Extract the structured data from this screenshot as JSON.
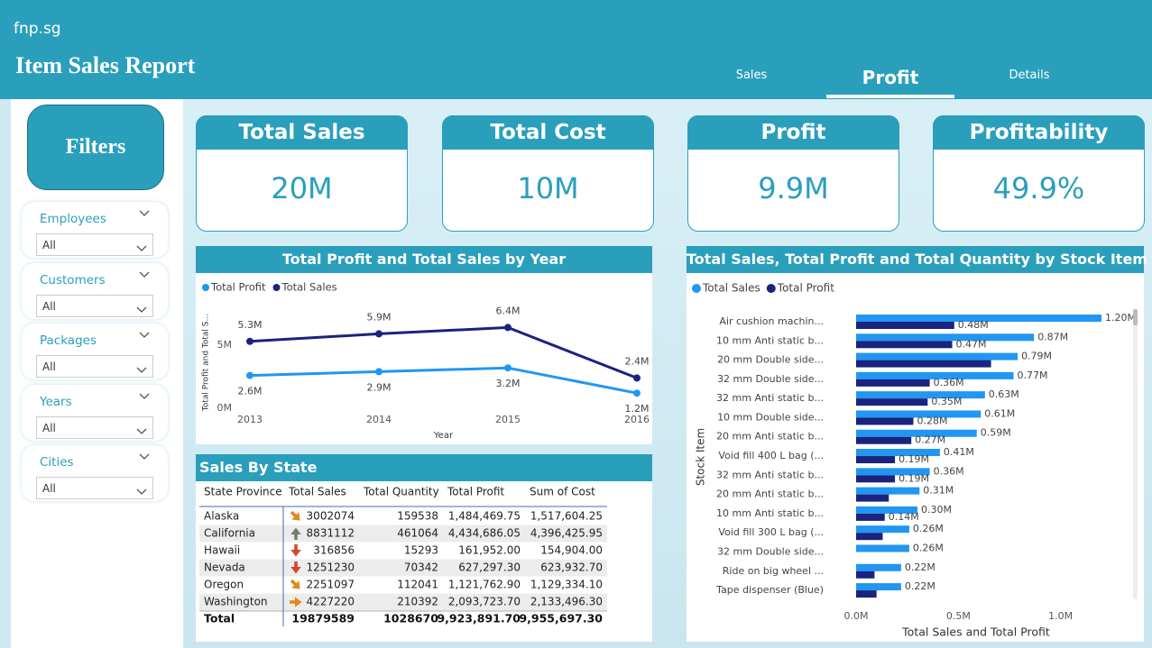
{
  "header": {
    "logo": "fnp.sg",
    "title": "Item Sales Report",
    "tabs": [
      "Sales",
      "Profit",
      "Details"
    ],
    "active_tab": 1
  },
  "filters": {
    "title": "Filters",
    "slicers": [
      {
        "label": "Employees",
        "value": "All"
      },
      {
        "label": "Customers",
        "value": "All"
      },
      {
        "label": "Packages",
        "value": "All"
      },
      {
        "label": "Years",
        "value": "All"
      },
      {
        "label": "Cities",
        "value": "All"
      }
    ]
  },
  "kpis": [
    {
      "title": "Total Sales",
      "value": "20M"
    },
    {
      "title": "Total Cost",
      "value": "10M"
    },
    {
      "title": "Profit",
      "value": "9.9M"
    },
    {
      "title": "Profitability",
      "value": "49.9%"
    }
  ],
  "chart_data": [
    {
      "type": "line",
      "title": "Total Profit and Total Sales by Year",
      "x_label": "Year",
      "y_label": "Total Profit and Total S...",
      "categories": [
        "2013",
        "2014",
        "2015",
        "2016"
      ],
      "series": [
        {
          "name": "Total Profit",
          "color": "#2196f3",
          "values": [
            2600000,
            2900000,
            3200000,
            1200000
          ],
          "value_labels": [
            "2.6M",
            "2.9M",
            "3.2M",
            "1.2M"
          ]
        },
        {
          "name": "Total Sales",
          "color": "#1a237e",
          "values": [
            5300000,
            5900000,
            6400000,
            2400000
          ],
          "value_labels": [
            "5.3M",
            "5.9M",
            "6.4M",
            "2.4M"
          ]
        }
      ],
      "ylim": [
        0,
        8000000
      ],
      "yticks": [
        {
          "value": 0,
          "label": "0M"
        },
        {
          "value": 5000000,
          "label": "5M"
        }
      ]
    },
    {
      "type": "hbar",
      "title": "Total Sales, Total Profit and Total Quantity by Stock Item",
      "x_label": "Total Sales and Total Profit",
      "y_label": "Stock Item",
      "categories": [
        "Air cushion machin...",
        "10 mm Anti static b...",
        "20 mm Double side...",
        "32 mm Double side...",
        "32 mm Anti static b...",
        "10 mm Double side...",
        "20 mm Anti static b...",
        "Void fill 400 L bag (...",
        "32 mm Anti static b...",
        "20 mm Anti static b...",
        "10 mm Anti static b...",
        "Void fill 300 L bag (...",
        "32 mm Double side...",
        "Ride on big wheel ...",
        "Tape dispenser (Blue)"
      ],
      "series": [
        {
          "name": "Total Sales",
          "color": "#2196f3",
          "values": [
            1200000,
            870000,
            790000,
            770000,
            630000,
            610000,
            590000,
            410000,
            360000,
            310000,
            300000,
            260000,
            260000,
            220000,
            220000
          ],
          "value_labels": [
            "1.20M",
            "0.87M",
            "0.79M",
            "0.77M",
            "0.63M",
            "0.61M",
            "0.59M",
            "0.41M",
            "0.36M",
            "0.31M",
            "0.30M",
            "0.26M",
            "0.26M",
            "0.22M",
            "0.22M"
          ]
        },
        {
          "name": "Total Profit",
          "color": "#1a237e",
          "values": [
            480000,
            470000,
            660000,
            360000,
            350000,
            280000,
            270000,
            190000,
            190000,
            160000,
            140000,
            130000,
            null,
            90000,
            100000
          ],
          "value_labels": [
            "0.48M",
            "0.47M",
            null,
            "0.36M",
            "0.35M",
            "0.28M",
            "0.27M",
            "0.19M",
            "0.19M",
            null,
            "0.14M",
            null,
            null,
            null,
            null
          ]
        }
      ],
      "xlim": [
        0,
        1350000
      ],
      "xticks": [
        {
          "value": 0,
          "label": "0.0M"
        },
        {
          "value": 500000,
          "label": "0.5M"
        },
        {
          "value": 1000000,
          "label": "1.0M"
        }
      ]
    }
  ],
  "table": {
    "title": "Sales By State",
    "columns": [
      "State Province",
      "Total Sales",
      "Total Quantity",
      "Total Profit",
      "Sum of Cost"
    ],
    "rows": [
      [
        "Alaska",
        "3002074",
        "159538",
        "1,484,469.75",
        "1,517,604.25"
      ],
      [
        "California",
        "8831112",
        "461064",
        "4,434,686.05",
        "4,396,425.95"
      ],
      [
        "Hawaii",
        "316856",
        "15293",
        "161,952.00",
        "154,904.00"
      ],
      [
        "Nevada",
        "1251230",
        "70342",
        "627,297.30",
        "623,932.70"
      ],
      [
        "Oregon",
        "2251097",
        "112041",
        "1,121,762.90",
        "1,129,334.10"
      ],
      [
        "Washington",
        "4227220",
        "210392",
        "2,093,723.70",
        "2,133,496.30"
      ]
    ],
    "icons": [
      "down-right",
      "up",
      "down",
      "down",
      "down-right",
      "right"
    ],
    "total": [
      "Total",
      "19879589",
      "1028670",
      "9,923,891.70",
      "9,955,697.30"
    ]
  }
}
